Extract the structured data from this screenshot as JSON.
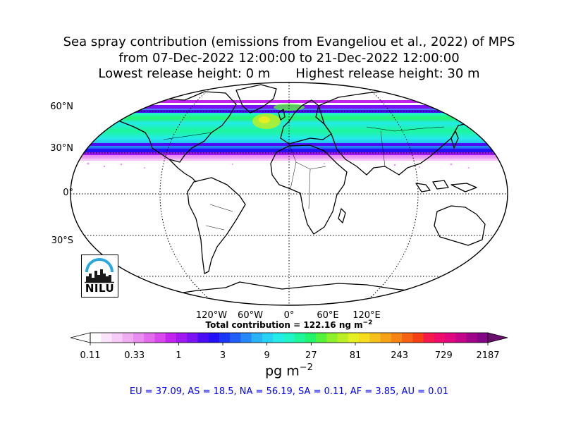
{
  "title": {
    "line1": "Sea spray contribution (emissions from Evangeliou et al., 2022) of MPS",
    "line2": "from 07-Dec-2022 12:00:00 to 21-Dec-2022 12:00:00",
    "line3_left": "Lowest release height: 0 m",
    "line3_right": "Highest release height: 30 m"
  },
  "map": {
    "projection": "Robinson",
    "lat_labels": [
      "60°N",
      "30°N",
      "0°",
      "30°S"
    ],
    "lon_labels": [
      "120°W",
      "60°W",
      "0°",
      "60°E",
      "120°E"
    ],
    "gridlines": "dotted"
  },
  "total_label": "Total contribution = 122.16 ng m",
  "total_exp": "−2",
  "colorbar": {
    "tick_labels": [
      "0.11",
      "0.33",
      "1",
      "3",
      "9",
      "27",
      "81",
      "243",
      "729",
      "2187"
    ],
    "extend": "both",
    "units_base": "pg m",
    "units_exp": "−2",
    "colors": [
      "#ffffff",
      "#fbe4fb",
      "#f6cbf7",
      "#f0adf2",
      "#e98ef0",
      "#e36bed",
      "#d848ec",
      "#c224ee",
      "#9f18f0",
      "#7a12f2",
      "#4b0cf5",
      "#2410f6",
      "#1837f7",
      "#1f5ef7",
      "#2887f6",
      "#2ab2f5",
      "#27d2f4",
      "#22ebe8",
      "#1ff5c8",
      "#1ef69a",
      "#24f46b",
      "#55f23d",
      "#8cf02a",
      "#bcef23",
      "#e6ef22",
      "#f5dc1f",
      "#f5c01b",
      "#f5a219",
      "#f58316",
      "#f56214",
      "#f54014",
      "#f5184a",
      "#f00a6c",
      "#e0067f",
      "#c4058a",
      "#a00589",
      "#820586"
    ]
  },
  "regions": "EU = 37.09,  AS = 18.5,  NA = 56.19,  SA = 0.11,  AF = 3.85,  AU = 0.01",
  "logo_text": "NILU"
}
